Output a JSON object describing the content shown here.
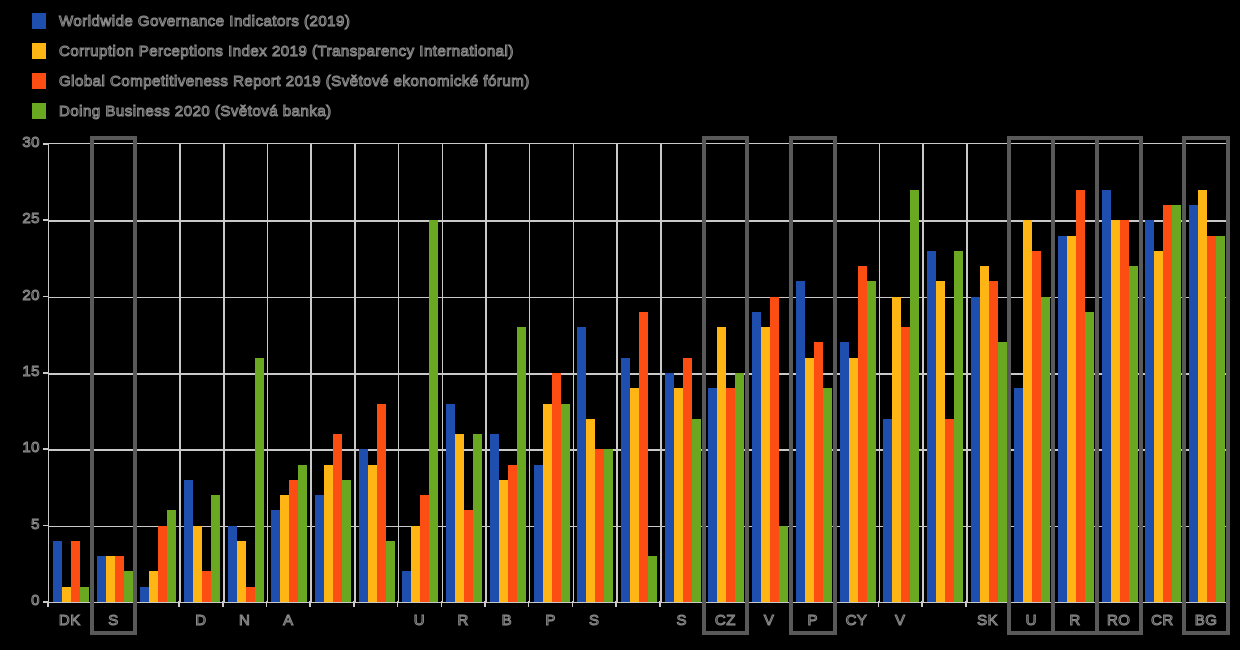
{
  "chart_data": {
    "type": "bar",
    "title": "",
    "categories": [
      "DK",
      "S",
      "",
      "D",
      "N",
      "A",
      "",
      "",
      "U",
      "R",
      "B",
      "P",
      "S",
      "",
      "S",
      "CZ",
      "V",
      "P",
      "CY",
      "V",
      "",
      "SK",
      "U",
      "R",
      "RO",
      "CR",
      "BG"
    ],
    "series": [
      {
        "name": "Worldwide Governance Indicators (2019)",
        "color": "#1e4fae",
        "values": [
          4,
          3,
          1,
          8,
          5,
          6,
          7,
          10,
          2,
          13,
          11,
          9,
          18,
          16,
          15,
          14,
          19,
          21,
          17,
          12,
          23,
          20,
          14,
          24,
          27,
          25,
          26
        ]
      },
      {
        "name": "Corruption Perceptions Index 2019 (Transparency International)",
        "color": "#ffb614",
        "values": [
          1,
          3,
          2,
          5,
          4,
          7,
          9,
          9,
          5,
          11,
          8,
          13,
          12,
          14,
          14,
          18,
          18,
          16,
          16,
          20,
          21,
          22,
          25,
          24,
          25,
          23,
          27
        ]
      },
      {
        "name": "Global Competitiveness Report 2019 (Světové ekonomické fórum)",
        "color": "#fc4e12",
        "values": [
          4,
          3,
          5,
          2,
          1,
          8,
          11,
          13,
          7,
          6,
          9,
          15,
          10,
          19,
          16,
          14,
          20,
          17,
          22,
          18,
          12,
          21,
          23,
          27,
          25,
          26,
          24
        ]
      },
      {
        "name": "Doing Business 2020 (Světová banka)",
        "color": "#69a820",
        "values": [
          1,
          2,
          6,
          7,
          16,
          9,
          8,
          4,
          25,
          11,
          18,
          13,
          10,
          3,
          12,
          15,
          5,
          14,
          21,
          27,
          23,
          17,
          20,
          19,
          22,
          26,
          24
        ]
      }
    ],
    "ylim": [
      0,
      30
    ],
    "yticks": [
      0,
      5,
      10,
      15,
      20,
      25,
      30
    ],
    "xlabel": "",
    "ylabel": "",
    "grid": true,
    "legend_position": "top-left",
    "highlighted_category_indices": [
      1,
      15,
      17,
      22,
      23,
      24,
      26
    ]
  },
  "styles": {
    "background": "#000000",
    "grid_color": "#c9c9c9",
    "highlight_box_color": "#595959",
    "text_outline_color": "#8f8f8f"
  }
}
